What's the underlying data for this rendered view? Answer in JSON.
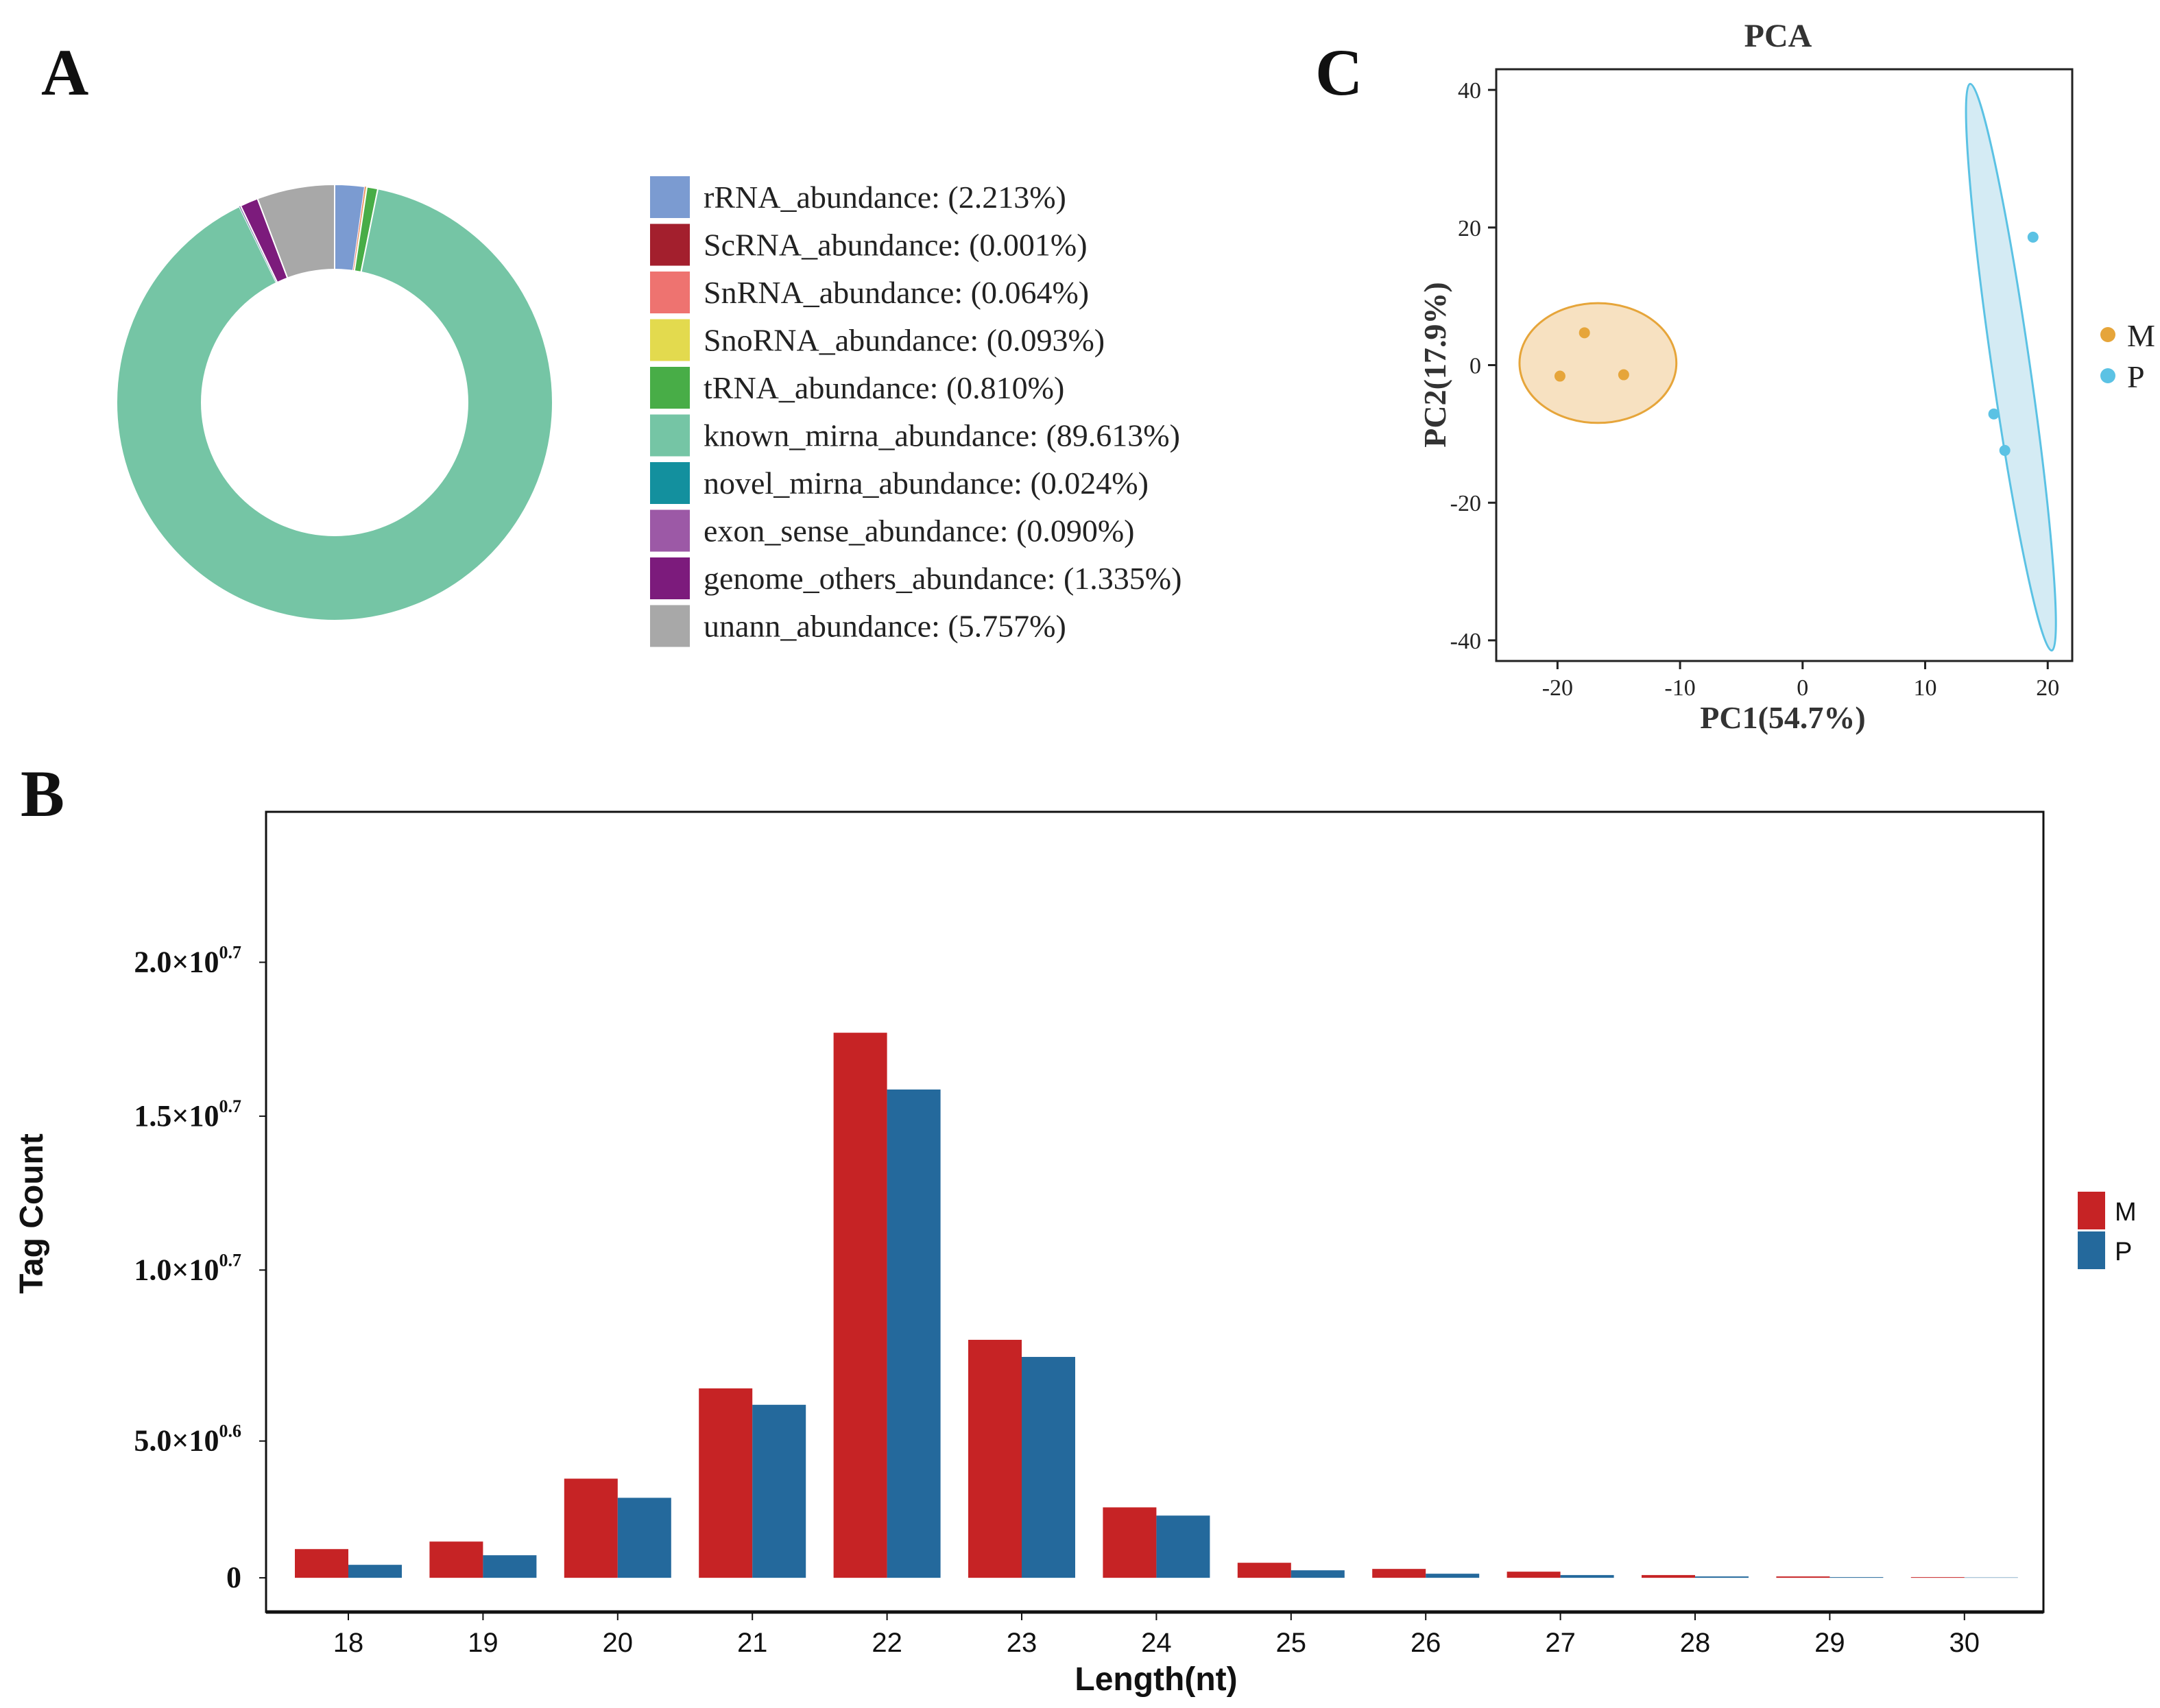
{
  "panels": {
    "a": "A",
    "b": "B",
    "c": "C"
  },
  "chart_data": [
    {
      "id": "A",
      "type": "pie",
      "style": "donut",
      "title": "",
      "categories": [
        "rRNA_abundance",
        "ScRNA_abundance",
        "SnRNA_abundance",
        "SnoRNA_abundance",
        "tRNA_abundance",
        "known_mirna_abundance",
        "novel_mirna_abundance",
        "exon_sense_abundance",
        "genome_others_abundance",
        "unann_abundance"
      ],
      "values": [
        2.213,
        0.001,
        0.064,
        0.093,
        0.81,
        89.613,
        0.024,
        0.09,
        1.335,
        5.757
      ],
      "legend": [
        {
          "label": "rRNA_abundance: (2.213%)",
          "color": "#7b9bd1"
        },
        {
          "label": "ScRNA_abundance: (0.001%)",
          "color": "#a31f2d"
        },
        {
          "label": "SnRNA_abundance: (0.064%)",
          "color": "#ee7370"
        },
        {
          "label": "SnoRNA_abundance: (0.093%)",
          "color": "#e3da4e"
        },
        {
          "label": "tRNA_abundance: (0.810%)",
          "color": "#48ad47"
        },
        {
          "label": "known_mirna_abundance: (89.613%)",
          "color": "#75c5a5"
        },
        {
          "label": "novel_mirna_abundance: (0.024%)",
          "color": "#13909e"
        },
        {
          "label": "exon_sense_abundance: (0.090%)",
          "color": "#9c59a6"
        },
        {
          "label": "genome_others_abundance: (1.335%)",
          "color": "#7c1b7c"
        },
        {
          "label": "unann_abundance: (5.757%)",
          "color": "#a8a8a8"
        }
      ],
      "legend_position": "right"
    },
    {
      "id": "B",
      "type": "bar",
      "title": "",
      "xlabel": "Length(nt)",
      "ylabel": "Tag Count",
      "categories": [
        "18",
        "19",
        "20",
        "21",
        "22",
        "23",
        "24",
        "25",
        "26",
        "27",
        "28",
        "29",
        "30"
      ],
      "series": [
        {
          "name": "M",
          "color": "#c62325",
          "values": [
            0.42,
            0.53,
            1.45,
            2.77,
            7.97,
            3.48,
            1.03,
            0.22,
            0.13,
            0.09,
            0.04,
            0.02,
            0.01
          ]
        },
        {
          "name": "P",
          "color": "#24699c",
          "values": [
            0.19,
            0.33,
            1.17,
            2.53,
            7.14,
            3.23,
            0.91,
            0.11,
            0.06,
            0.04,
            0.02,
            0.01,
            0.005
          ]
        }
      ],
      "yticks": [
        {
          "value": 0,
          "base": "0",
          "exp": ""
        },
        {
          "value": 2.0,
          "base": "5.0×10",
          "exp": "0.6"
        },
        {
          "value": 4.5,
          "base": "1.0×10",
          "exp": "0.7"
        },
        {
          "value": 6.75,
          "base": "1.5×10",
          "exp": "0.7"
        },
        {
          "value": 9.0,
          "base": "2.0×10",
          "exp": "0.7"
        }
      ],
      "ylim": [
        -0.5,
        11.2
      ],
      "legend_position": "right"
    },
    {
      "id": "C",
      "type": "scatter",
      "title": "PCA",
      "xlabel": "PC1(54.7%)",
      "ylabel": "PC2(17.9%)",
      "xlim": [
        -25,
        22
      ],
      "ylim": [
        -43,
        43
      ],
      "xticks": [
        -20,
        -10,
        0,
        10,
        20
      ],
      "yticks": [
        -40,
        -20,
        0,
        20,
        40
      ],
      "series": [
        {
          "name": "M",
          "color": "#e6a53a",
          "fill": "#f6dcb6",
          "points": [
            {
              "x": -17.8,
              "y": 4.7
            },
            {
              "x": -19.8,
              "y": -1.6
            },
            {
              "x": -14.6,
              "y": -1.4
            }
          ],
          "ellipse": {
            "cx": -16.7,
            "cy": 0.3,
            "rx": 6.4,
            "ry": 8.7,
            "angle": 0
          }
        },
        {
          "name": "P",
          "color": "#5bc2e4",
          "fill": "#cde7f2",
          "points": [
            {
              "x": 18.8,
              "y": 18.6
            },
            {
              "x": 15.6,
              "y": -7.1
            },
            {
              "x": 16.5,
              "y": -12.4
            }
          ],
          "ellipse": {
            "cx": 17.0,
            "cy": -0.3,
            "rx": 1.55,
            "ry": 41.6,
            "angle": -8.2
          }
        }
      ],
      "legend_position": "right"
    }
  ]
}
